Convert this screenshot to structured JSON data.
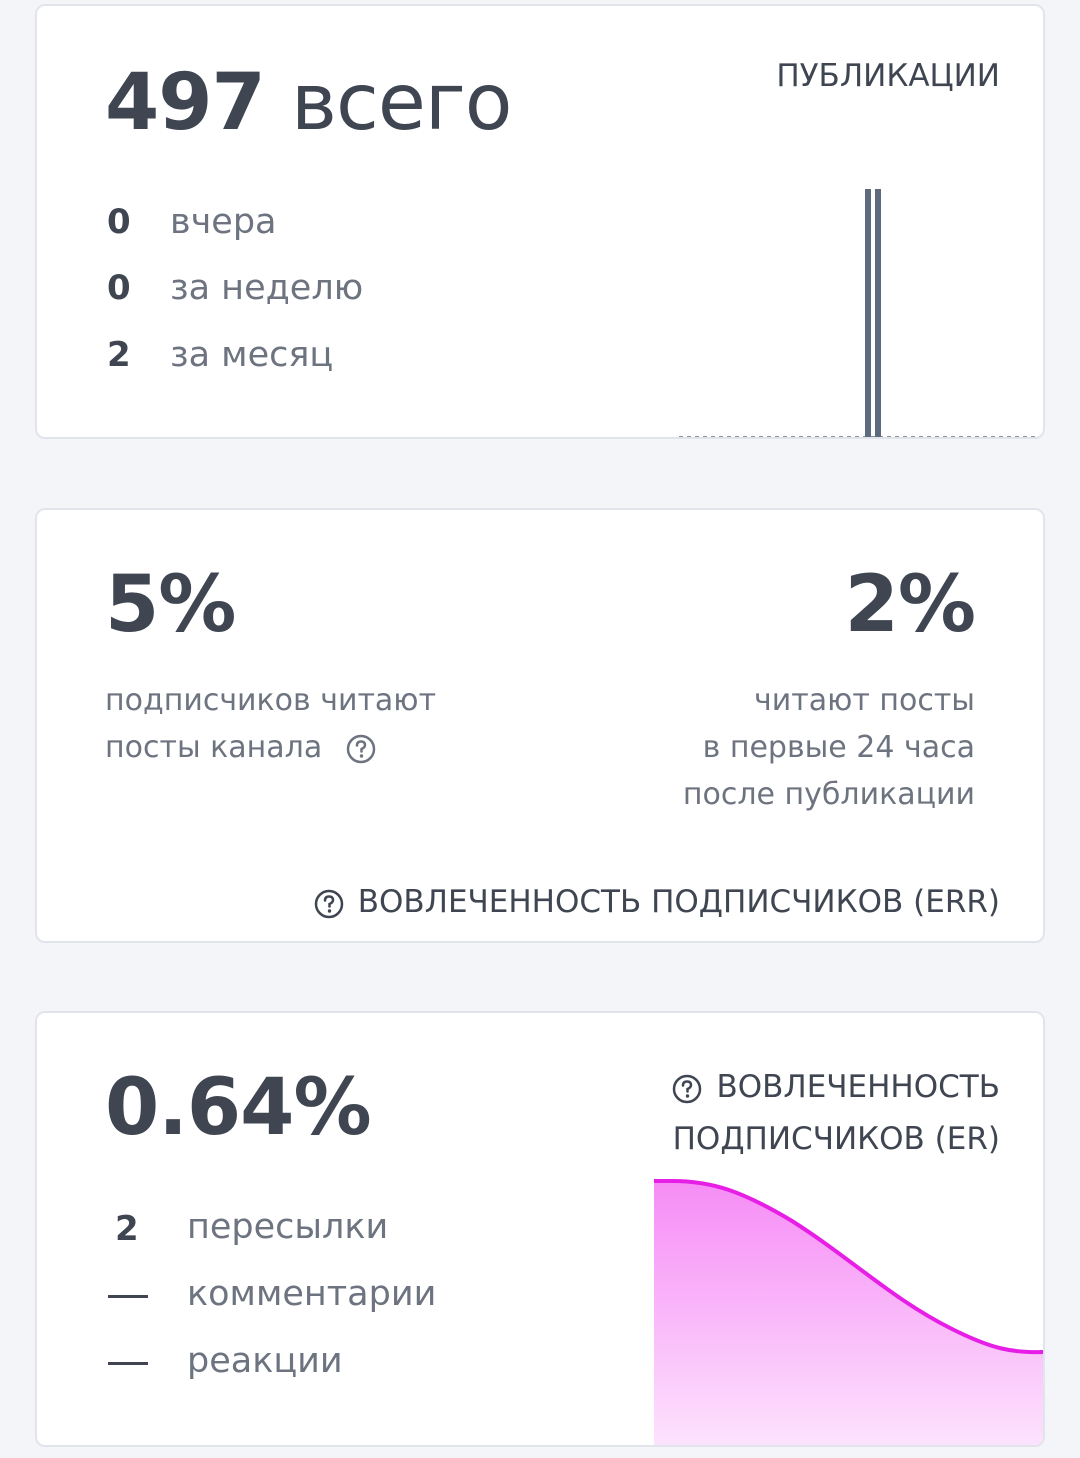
{
  "posts": {
    "total_value": "497",
    "total_suffix": "всего",
    "section_label": "ПУБЛИКАЦИИ",
    "stats": [
      {
        "value": "0",
        "label": "вчера"
      },
      {
        "value": "0",
        "label": "за неделю"
      },
      {
        "value": "2",
        "label": "за месяц"
      }
    ],
    "chart_bars": [
      1,
      1
    ],
    "bar_color": "#5e6b7c"
  },
  "err": {
    "left_value": "5%",
    "left_desc_line1": "подписчиков читают",
    "left_desc_line2": "посты канала",
    "right_value": "2%",
    "right_desc_line1": "читают посты",
    "right_desc_line2": "в первые 24 часа",
    "right_desc_line3": "после публикации",
    "footer_label": "ВОВЛЕЧЕННОСТЬ ПОДПИСЧИКОВ (ERR)",
    "help_icon": "question-circle-icon"
  },
  "er": {
    "value": "0.64%",
    "label_line1": "ВОВЛЕЧЕННОСТЬ",
    "label_line2": "ПОДПИСЧИКОВ (ER)",
    "stats": [
      {
        "value": "2",
        "label": "пересылки"
      },
      {
        "value": "—",
        "label": "комментарии"
      },
      {
        "value": "—",
        "label": "реакции"
      }
    ],
    "curve_color": "#e61ee6",
    "fill_color_top": "#f68cf6",
    "fill_color_bottom": "#fde4fd"
  }
}
